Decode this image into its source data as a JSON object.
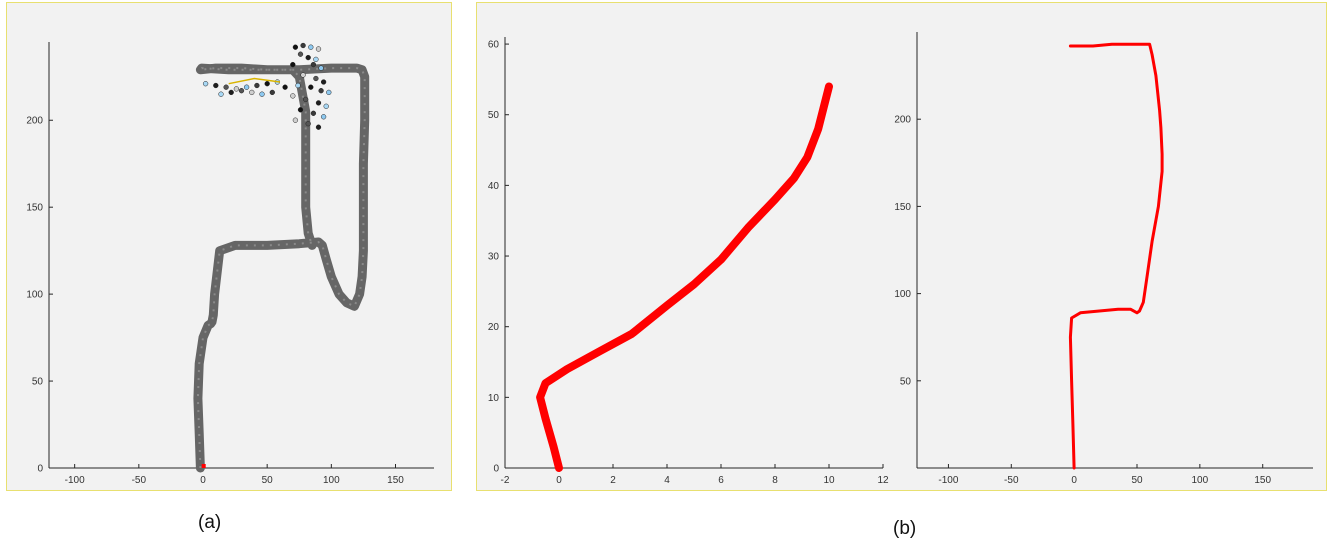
{
  "captions": {
    "a": "(a)",
    "b": "(b)"
  },
  "colors": {
    "panel_bg": "#f2f2f2",
    "panel_border": "#e8e070",
    "trajectory_gray": "#666666",
    "trajectory_red": "#ff0000",
    "axis": "#262626"
  },
  "chart_data": [
    {
      "id": "a",
      "type": "line",
      "title": "",
      "xlabel": "",
      "ylabel": "",
      "xlim": [
        -120,
        180
      ],
      "ylim": [
        0,
        245
      ],
      "xticks": [
        -100,
        -50,
        0,
        50,
        100,
        150
      ],
      "yticks": [
        0,
        50,
        100,
        150,
        200
      ],
      "grid": false,
      "series": [
        {
          "color": "#666666",
          "x": [
            -2,
            -3,
            -4,
            -3,
            0,
            4,
            6,
            7,
            8,
            9,
            13,
            25,
            50,
            75,
            90,
            93,
            96,
            100,
            106,
            112,
            118,
            122,
            124,
            125,
            125,
            125,
            126,
            126,
            126,
            124,
            120,
            100,
            75,
            50,
            30,
            10,
            -2,
            -1,
            20,
            40,
            60,
            70,
            75,
            80,
            80,
            80,
            82,
            85
          ],
          "y": [
            0,
            20,
            40,
            60,
            75,
            82,
            83,
            84,
            88,
            100,
            125,
            128,
            128,
            129,
            130,
            128,
            120,
            110,
            100,
            95,
            93,
            100,
            110,
            125,
            150,
            175,
            200,
            220,
            225,
            229,
            230,
            230,
            229,
            229,
            230,
            230,
            229,
            230,
            229,
            229,
            229,
            229,
            225,
            205,
            180,
            150,
            135,
            128
          ]
        }
      ]
    },
    {
      "id": "b1",
      "type": "line",
      "title": "",
      "xlabel": "",
      "ylabel": "",
      "xlim": [
        -2,
        12
      ],
      "ylim": [
        0,
        61
      ],
      "xticks": [
        -2,
        0,
        2,
        4,
        6,
        8,
        10,
        12
      ],
      "yticks": [
        0,
        10,
        20,
        30,
        40,
        50,
        60
      ],
      "grid": false,
      "series": [
        {
          "color": "#ff0000",
          "x": [
            0,
            -0.2,
            -0.5,
            -0.7,
            -0.5,
            0.3,
            1.5,
            2.7,
            4,
            5,
            6,
            7,
            8,
            8.7,
            9.2,
            9.6,
            9.8,
            10
          ],
          "y": [
            0,
            3,
            7,
            10,
            12,
            14,
            16.5,
            19,
            23,
            26,
            29.5,
            34,
            38,
            41,
            44,
            48,
            51,
            54
          ]
        }
      ]
    },
    {
      "id": "b2",
      "type": "line",
      "title": "",
      "xlabel": "",
      "ylabel": "",
      "xlim": [
        -125,
        190
      ],
      "ylim": [
        0,
        250
      ],
      "xticks": [
        -100,
        -50,
        0,
        50,
        100,
        150
      ],
      "yticks": [
        50,
        100,
        150,
        200
      ],
      "grid": false,
      "series": [
        {
          "color": "#ff0000",
          "x": [
            0,
            -1,
            -2,
            -3,
            -2,
            5,
            20,
            35,
            45,
            50,
            52,
            55,
            58,
            62,
            67,
            70,
            70,
            69,
            68,
            65,
            62,
            60,
            50,
            30,
            15,
            -3
          ],
          "y": [
            0,
            25,
            50,
            75,
            86,
            89,
            90,
            91,
            91,
            89,
            90,
            95,
            110,
            130,
            150,
            170,
            180,
            195,
            205,
            225,
            237,
            243,
            243,
            243,
            242,
            242
          ]
        }
      ]
    }
  ],
  "axes": {
    "a": {
      "xtick_labels": [
        "-100",
        "-50",
        "0",
        "50",
        "100",
        "150"
      ],
      "ytick_labels": [
        "0",
        "50",
        "100",
        "150",
        "200"
      ]
    },
    "b1": {
      "xtick_labels": [
        "-2",
        "0",
        "2",
        "4",
        "6",
        "8",
        "10",
        "12"
      ],
      "ytick_labels": [
        "0",
        "10",
        "20",
        "30",
        "40",
        "50",
        "60"
      ]
    },
    "b2": {
      "xtick_labels": [
        "-100",
        "-50",
        "0",
        "50",
        "100",
        "150"
      ],
      "ytick_labels": [
        "50",
        "100",
        "150",
        "200"
      ]
    }
  }
}
